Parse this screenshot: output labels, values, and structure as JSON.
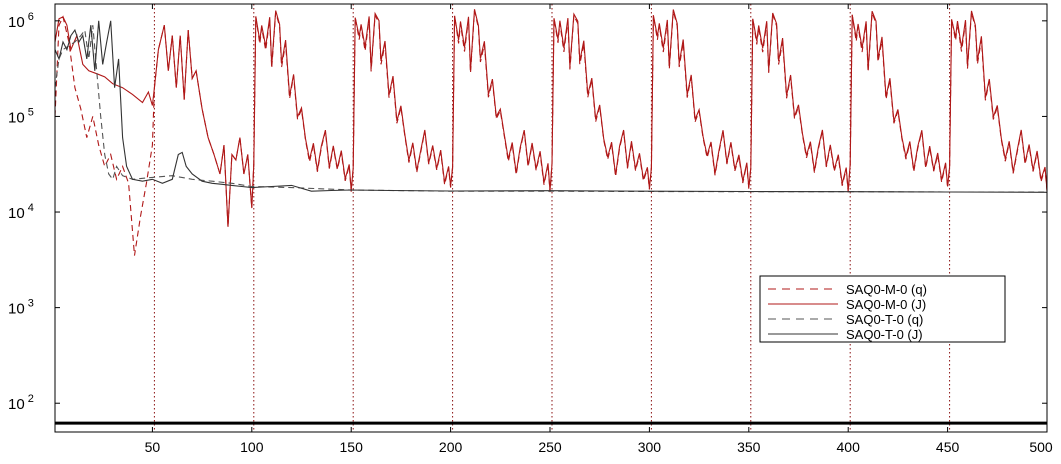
{
  "chart_data": {
    "type": "line",
    "title": "",
    "xlabel": "",
    "ylabel": "",
    "xlim": [
      1,
      500
    ],
    "ylim": [
      50,
      1500000
    ],
    "yscale": "log",
    "grid": false,
    "legend_position": "lower-right",
    "x_ticks": [
      50,
      100,
      150,
      200,
      250,
      300,
      350,
      400,
      450,
      500
    ],
    "x_tick_labels": [
      "50",
      "100",
      "150",
      "200",
      "250",
      "300",
      "350",
      "400",
      "450",
      "500"
    ],
    "y_ticks": [
      100,
      1000,
      10000,
      100000,
      1000000
    ],
    "y_tick_labels": [
      {
        "base": "10",
        "exp": "2"
      },
      {
        "base": "10",
        "exp": "3"
      },
      {
        "base": "10",
        "exp": "4"
      },
      {
        "base": "10",
        "exp": "5"
      },
      {
        "base": "10",
        "exp": "6"
      }
    ],
    "vertical_markers": [
      51,
      101,
      151,
      201,
      251,
      301,
      351,
      401,
      451
    ],
    "horizontal_reference": 62,
    "series": [
      {
        "name": "SAQ0-M-0 (q)",
        "color": "#b01818",
        "style": "dashed",
        "x": [
          1,
          3,
          5,
          8,
          11,
          14,
          17,
          20,
          23,
          26,
          29,
          32,
          35,
          38,
          41,
          44,
          47,
          50,
          51,
          53,
          56,
          58,
          60,
          62,
          64,
          66,
          68,
          70,
          72,
          75,
          78,
          81,
          84,
          86,
          88,
          90,
          92,
          94,
          96,
          98,
          100
        ],
        "y": [
          100000,
          900000,
          1100000,
          600000,
          200000,
          120000,
          60000,
          100000,
          50000,
          30000,
          40000,
          22000,
          30000,
          20000,
          3500,
          9000,
          20000,
          50000,
          200000,
          500000,
          900000,
          300000,
          700000,
          200000,
          700000,
          150000,
          800000,
          250000,
          300000,
          120000,
          60000,
          40000,
          25000,
          50000,
          7000,
          40000,
          35000,
          60000,
          25000,
          40000,
          11000
        ]
      },
      {
        "name": "SAQ0-M-0 (J)",
        "color": "#b01818",
        "style": "solid",
        "x": [
          1,
          3,
          5,
          7,
          9,
          12,
          15,
          18,
          22,
          26,
          30,
          35,
          40,
          45,
          48,
          50,
          51,
          53,
          56,
          58,
          60,
          62,
          64,
          66,
          68,
          70,
          72,
          75,
          78,
          81,
          84,
          86,
          88,
          90,
          92,
          94,
          96,
          98,
          100
        ],
        "y": [
          600000,
          1050000,
          1100000,
          900000,
          500000,
          700000,
          350000,
          300000,
          280000,
          260000,
          220000,
          200000,
          170000,
          140000,
          180000,
          130000,
          200000,
          500000,
          900000,
          300000,
          700000,
          200000,
          700000,
          150000,
          800000,
          250000,
          300000,
          120000,
          60000,
          40000,
          25000,
          50000,
          7000,
          40000,
          35000,
          60000,
          25000,
          40000,
          11000
        ]
      },
      {
        "name": "SAQ0-T-0 (q)",
        "color": "#555555",
        "style": "dashed",
        "x": [
          1,
          3,
          5,
          8,
          11,
          14,
          16,
          18,
          20,
          22,
          24,
          26,
          28,
          30,
          32,
          35,
          40,
          50,
          60,
          70,
          80,
          90,
          100,
          120,
          150,
          200,
          250,
          300,
          350,
          400,
          450,
          500
        ],
        "y": [
          200000,
          400000,
          500000,
          550000,
          600000,
          700000,
          800000,
          400000,
          900000,
          300000,
          100000,
          40000,
          25000,
          22000,
          30000,
          24000,
          22000,
          23000,
          24000,
          22000,
          21000,
          20000,
          18500,
          18000,
          17000,
          16500,
          16500,
          16400,
          16300,
          16300,
          16200,
          16200
        ]
      },
      {
        "name": "SAQ0-T-0 (J)",
        "color": "#333333",
        "style": "solid",
        "x": [
          1,
          3,
          5,
          7,
          9,
          11,
          13,
          15,
          17,
          19,
          21,
          23,
          25,
          27,
          29,
          31,
          33,
          35,
          37,
          40,
          45,
          50,
          55,
          60,
          63,
          65,
          67,
          70,
          75,
          80,
          85,
          90,
          95,
          100,
          110,
          120,
          130,
          140,
          150,
          170,
          200,
          250,
          300,
          350,
          400,
          450,
          500
        ],
        "y": [
          500000,
          400000,
          600000,
          500000,
          700000,
          800000,
          600000,
          700000,
          400000,
          900000,
          300000,
          1000000,
          350000,
          600000,
          1000000,
          200000,
          400000,
          60000,
          30000,
          22000,
          21000,
          22000,
          20000,
          22000,
          40000,
          42000,
          30000,
          25000,
          21000,
          20000,
          19500,
          19000,
          18500,
          18000,
          18500,
          19000,
          16500,
          16800,
          17000,
          16800,
          16600,
          16700,
          16500,
          16400,
          16300,
          16200,
          16100
        ]
      }
    ],
    "periodic_pattern": {
      "note_x_start": 101,
      "period": 50,
      "repeats": 8,
      "x_offsets": [
        0,
        1,
        3,
        4,
        6,
        8,
        9,
        11,
        13,
        14,
        16,
        18,
        20,
        22,
        24,
        26,
        28,
        30,
        32,
        34,
        36,
        38,
        40,
        42,
        44,
        46,
        48,
        49
      ],
      "q_values": [
        30000,
        1100000,
        600000,
        900000,
        500000,
        1000000,
        300000,
        1200000,
        900000,
        350000,
        600000,
        150000,
        250000,
        90000,
        120000,
        60000,
        35000,
        50000,
        25000,
        45000,
        70000,
        30000,
        50000,
        28000,
        40000,
        20000,
        30000,
        17000
      ],
      "J_values": [
        30000,
        1100000,
        650000,
        950000,
        550000,
        1050000,
        320000,
        1250000,
        950000,
        380000,
        650000,
        160000,
        260000,
        95000,
        125000,
        62000,
        37000,
        52000,
        26000,
        47000,
        72000,
        31000,
        52000,
        29000,
        42000,
        21000,
        31000,
        17500
      ]
    }
  },
  "legend": {
    "entries": [
      {
        "label": "SAQ0-M-0 (q)",
        "color": "#b01818",
        "style": "dashed"
      },
      {
        "label": "SAQ0-M-0 (J)",
        "color": "#b01818",
        "style": "solid"
      },
      {
        "label": "SAQ0-T-0 (q)",
        "color": "#555555",
        "style": "dashed"
      },
      {
        "label": "SAQ0-T-0 (J)",
        "color": "#333333",
        "style": "solid"
      }
    ]
  }
}
